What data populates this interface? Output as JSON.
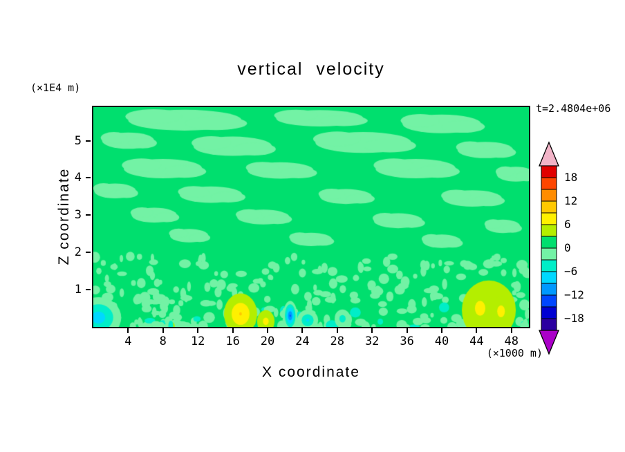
{
  "title": "vertical velocity",
  "time_label": "t=2.4804e+06",
  "x_axis": {
    "label": "X coordinate",
    "unit": "(×1000 m)",
    "ticks": [
      4,
      8,
      12,
      16,
      20,
      24,
      28,
      32,
      36,
      40,
      44,
      48
    ],
    "range": [
      0,
      50
    ]
  },
  "y_axis": {
    "label": "Z coordinate",
    "unit": "(×1E4 m)",
    "ticks": [
      1,
      2,
      3,
      4,
      5
    ],
    "range": [
      0,
      5.9
    ]
  },
  "colorbar": {
    "tick_labels": [
      "18",
      "12",
      "6",
      "0",
      "−6",
      "−12",
      "−18"
    ],
    "levels": [
      21,
      18,
      15,
      12,
      9,
      6,
      3,
      0,
      -3,
      -6,
      -9,
      -12,
      -15,
      -18,
      -21
    ],
    "band_colors": [
      "#e00000",
      "#ff4600",
      "#ff8c00",
      "#ffc800",
      "#fff000",
      "#b4ee00",
      "#00df6e",
      "#73f2a5",
      "#00eec8",
      "#00d8ff",
      "#0098ff",
      "#0046ff",
      "#0000d2",
      "#2b00a0"
    ],
    "top_arrow_color": "#f2b4c8",
    "bottom_arrow_color": "#aa00c8"
  },
  "chart_data": {
    "type": "contour",
    "field": "vertical velocity",
    "contour_interval": 3,
    "value_range_shown": [
      -21,
      21
    ],
    "background_value": 1,
    "x_range": [
      0,
      50
    ],
    "z_range": [
      0,
      5.9
    ],
    "streak_value": -1.5,
    "streaks": [
      [
        10.5,
        5.55,
        6.5,
        0.28
      ],
      [
        26,
        5.6,
        5,
        0.22
      ],
      [
        40,
        5.45,
        4.5,
        0.25
      ],
      [
        4,
        5.0,
        3,
        0.22
      ],
      [
        16,
        4.85,
        4.5,
        0.26
      ],
      [
        31,
        4.95,
        5.5,
        0.28
      ],
      [
        45,
        4.75,
        3.2,
        0.22
      ],
      [
        8,
        4.25,
        4.5,
        0.26
      ],
      [
        21.5,
        4.2,
        3.8,
        0.22
      ],
      [
        37,
        4.25,
        4.6,
        0.26
      ],
      [
        48.5,
        4.1,
        2.2,
        0.2
      ],
      [
        2.5,
        3.65,
        2.4,
        0.2
      ],
      [
        13.5,
        3.55,
        3.6,
        0.22
      ],
      [
        29,
        3.5,
        3.0,
        0.2
      ],
      [
        43.5,
        3.45,
        3.4,
        0.22
      ],
      [
        7,
        3.0,
        2.6,
        0.2
      ],
      [
        19.5,
        2.95,
        3.0,
        0.2
      ],
      [
        35,
        2.85,
        2.8,
        0.2
      ],
      [
        47,
        2.7,
        2.0,
        0.18
      ],
      [
        11,
        2.45,
        2.2,
        0.18
      ],
      [
        25,
        2.35,
        2.4,
        0.18
      ],
      [
        40,
        2.3,
        2.2,
        0.18
      ]
    ],
    "blobs": [
      {
        "x": 0.6,
        "z": 0.25,
        "rx": 2.6,
        "rz": 0.55,
        "value": -8.5
      },
      {
        "x": 16.9,
        "z": 0.35,
        "rx": 1.9,
        "rz": 0.55,
        "value": 9.5
      },
      {
        "x": 19.8,
        "z": 0.15,
        "rx": 1.0,
        "rz": 0.3,
        "value": 7.5
      },
      {
        "x": 22.6,
        "z": 0.3,
        "rx": 0.8,
        "rz": 0.4,
        "value": -13
      },
      {
        "x": 24.6,
        "z": 0.18,
        "rx": 1.2,
        "rz": 0.28,
        "value": -7
      },
      {
        "x": 28.6,
        "z": 0.22,
        "rx": 0.9,
        "rz": 0.25,
        "value": -5
      },
      {
        "x": 45.4,
        "z": 0.45,
        "rx": 3.1,
        "rz": 0.8,
        "value": 4.5
      },
      {
        "x": 44.4,
        "z": 0.5,
        "rx": 1.5,
        "rz": 0.5,
        "value": 8
      },
      {
        "x": 46.8,
        "z": 0.42,
        "rx": 1.1,
        "rz": 0.4,
        "value": 8
      }
    ],
    "speckles": {
      "seed": 11,
      "count": 300,
      "zone_height": 1.9,
      "base_value": -1.5,
      "cool_value": -4.5,
      "warm_value": 4
    }
  }
}
